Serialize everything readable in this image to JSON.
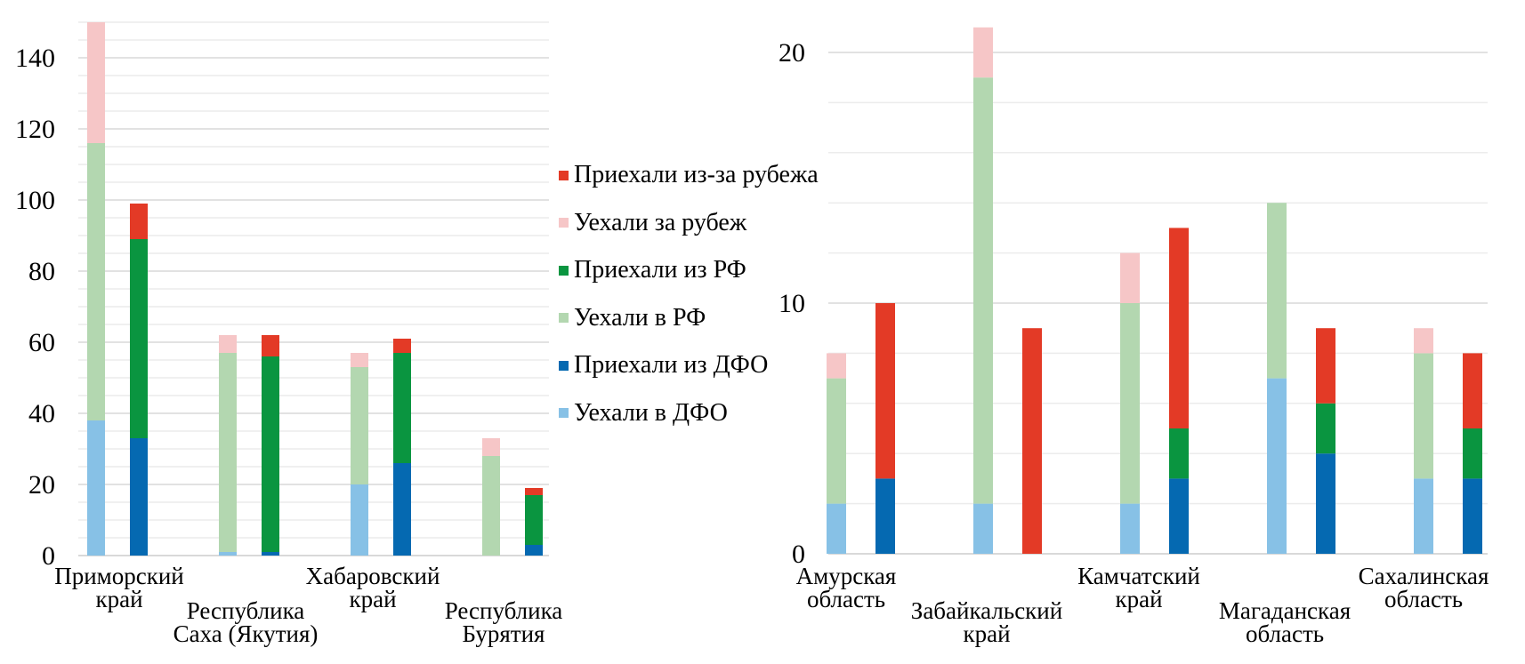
{
  "legend": [
    {
      "label": "Приехали из-за рубежа",
      "color": "#e33a26"
    },
    {
      "label": "Уехали за рубеж",
      "color": "#f6c6c7"
    },
    {
      "label": "Приехали из РФ",
      "color": "#0a9540"
    },
    {
      "label": "Уехали в РФ",
      "color": "#b3d7b0"
    },
    {
      "label": "Приехали из ДФО",
      "color": "#0569b1"
    },
    {
      "label": "Уехали в ДФО",
      "color": "#87c1e6"
    }
  ],
  "chart_data": [
    {
      "type": "bar",
      "stacked": true,
      "ylim": [
        0,
        150
      ],
      "yticks": [
        0,
        20,
        40,
        60,
        80,
        100,
        120,
        140
      ],
      "grid": true,
      "legend_position": "right",
      "categories": [
        {
          "label": [
            "Приморский",
            "край"
          ],
          "left": [
            38,
            78,
            34
          ],
          "right": [
            33,
            56,
            10
          ]
        },
        {
          "label": [
            "Республика",
            "Саха (Якутия)"
          ],
          "left": [
            1,
            56,
            5
          ],
          "right": [
            1,
            55,
            6
          ]
        },
        {
          "label": [
            "Хабаровский",
            "край"
          ],
          "left": [
            20,
            33,
            4
          ],
          "right": [
            26,
            31,
            4
          ]
        },
        {
          "label": [
            "Республика",
            "Бурятия"
          ],
          "left": [
            0,
            28,
            5
          ],
          "right": [
            3,
            14,
            2
          ]
        }
      ]
    },
    {
      "type": "bar",
      "stacked": true,
      "ylim": [
        0,
        21
      ],
      "yticks": [
        0,
        10,
        20
      ],
      "grid": true,
      "categories": [
        {
          "label": [
            "Амурская",
            "область"
          ],
          "left": [
            2,
            5,
            1
          ],
          "right": [
            3,
            0,
            7
          ]
        },
        {
          "label": [
            "Забайкальский",
            "край"
          ],
          "left": [
            2,
            17,
            2
          ],
          "right": [
            0,
            0,
            9
          ]
        },
        {
          "label": [
            "Камчатский",
            "край"
          ],
          "left": [
            2,
            8,
            2
          ],
          "right": [
            3,
            2,
            8
          ]
        },
        {
          "label": [
            "Магаданская",
            "область"
          ],
          "left": [
            7,
            7,
            0
          ],
          "right": [
            4,
            2,
            3
          ]
        },
        {
          "label": [
            "Сахалинская",
            "область"
          ],
          "left": [
            3,
            5,
            1
          ],
          "right": [
            3,
            2,
            3
          ]
        }
      ]
    }
  ]
}
